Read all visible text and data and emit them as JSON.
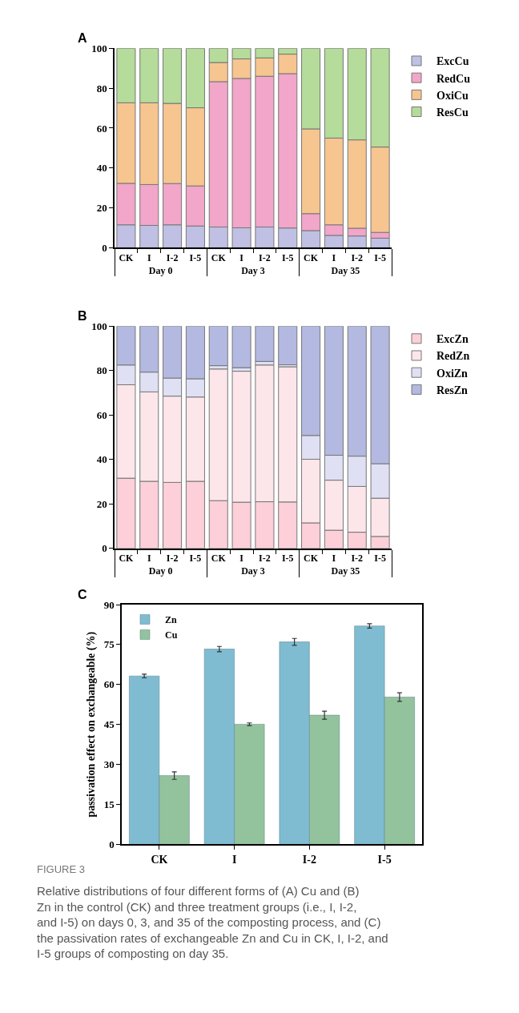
{
  "chart_data": [
    {
      "type": "bar",
      "title": "A",
      "stacked": true,
      "categories": [
        "CK",
        "I",
        "I-2",
        "I-5",
        "CK",
        "I",
        "I-2",
        "I-5",
        "CK",
        "I",
        "I-2",
        "I-5"
      ],
      "annotations": [
        "Day 0",
        "Day 3",
        "Day 35"
      ],
      "ylim": [
        0,
        100
      ],
      "yticks": [
        0,
        20,
        40,
        60,
        80,
        100
      ],
      "legend": "right",
      "series": [
        {
          "name": "ExcCu",
          "color": "#c0c0e4",
          "values": [
            11.5,
            11.2,
            11.5,
            10.9,
            10.4,
            10.0,
            10.4,
            9.9,
            8.6,
            6.2,
            5.9,
            4.8
          ]
        },
        {
          "name": "RedCu",
          "color": "#f2a6c9",
          "values": [
            20.8,
            20.5,
            20.7,
            20.1,
            72.9,
            74.9,
            75.6,
            77.4,
            8.5,
            5.3,
            3.9,
            2.9
          ]
        },
        {
          "name": "OxiCu",
          "color": "#f6c590",
          "values": [
            40.4,
            41.0,
            40.2,
            39.2,
            9.6,
            9.8,
            9.2,
            9.8,
            42.5,
            43.5,
            44.3,
            42.8
          ]
        },
        {
          "name": "ResCu",
          "color": "#b5dc9a",
          "values": [
            27.3,
            27.3,
            27.6,
            29.8,
            7.1,
            5.3,
            4.8,
            2.9,
            40.4,
            45.0,
            45.9,
            49.5
          ]
        }
      ]
    },
    {
      "type": "bar",
      "title": "B",
      "stacked": true,
      "categories": [
        "CK",
        "I",
        "I-2",
        "I-5",
        "CK",
        "I",
        "I-2",
        "I-5",
        "CK",
        "I",
        "I-2",
        "I-5"
      ],
      "annotations": [
        "Day 0",
        "Day 3",
        "Day 35"
      ],
      "ylim": [
        0,
        100
      ],
      "yticks": [
        0,
        20,
        40,
        60,
        80,
        100
      ],
      "legend": "right",
      "series": [
        {
          "name": "ExcZn",
          "color": "#fccfd9",
          "values": [
            31.6,
            30.2,
            29.7,
            30.2,
            21.5,
            20.8,
            21.0,
            20.9,
            11.5,
            8.2,
            7.3,
            5.4
          ]
        },
        {
          "name": "RedZn",
          "color": "#fde6ea",
          "values": [
            42.0,
            40.2,
            38.8,
            37.9,
            59.2,
            58.9,
            61.5,
            60.8,
            28.6,
            22.5,
            20.6,
            17.2
          ]
        },
        {
          "name": "OxiZn",
          "color": "#dfe0f3",
          "values": [
            8.9,
            8.9,
            8.1,
            8.2,
            1.5,
            1.6,
            1.6,
            0.9,
            10.7,
            11.2,
            13.6,
            15.5
          ]
        },
        {
          "name": "ResZn",
          "color": "#b3b9e0",
          "values": [
            17.5,
            20.7,
            23.4,
            23.7,
            17.8,
            18.7,
            15.9,
            17.4,
            49.2,
            58.1,
            58.5,
            61.9
          ]
        }
      ]
    },
    {
      "type": "bar",
      "title": "C",
      "categories": [
        "CK",
        "I",
        "I-2",
        "I-5"
      ],
      "ylabel": "passivation effect on exchangeable (%)",
      "ylim": [
        0,
        90
      ],
      "yticks": [
        0,
        15,
        30,
        45,
        60,
        75,
        90
      ],
      "legend": "top left",
      "annotations": [
        "FIGURE 3",
        "Relative distributions of four different forms of (A) Cu and (B) Zn in the control (CK) and three treatment groups (i.e., I, I-2, and I-5) on days 0, 3, and 35 of the composting process, and (C) the passivation rates of exchangeable Zn and Cu in CK, I, I-2, and I-5 groups of composting on day 35."
      ],
      "series": [
        {
          "name": "Zn",
          "color": "#7fbcd2",
          "values": [
            63.2,
            73.3,
            76.0,
            82.0
          ],
          "errors": [
            0.7,
            1.0,
            1.3,
            0.8
          ]
        },
        {
          "name": "Cu",
          "color": "#93c39c",
          "values": [
            25.8,
            45.1,
            48.5,
            55.3
          ],
          "errors": [
            1.4,
            0.5,
            1.5,
            1.6
          ]
        }
      ]
    }
  ]
}
